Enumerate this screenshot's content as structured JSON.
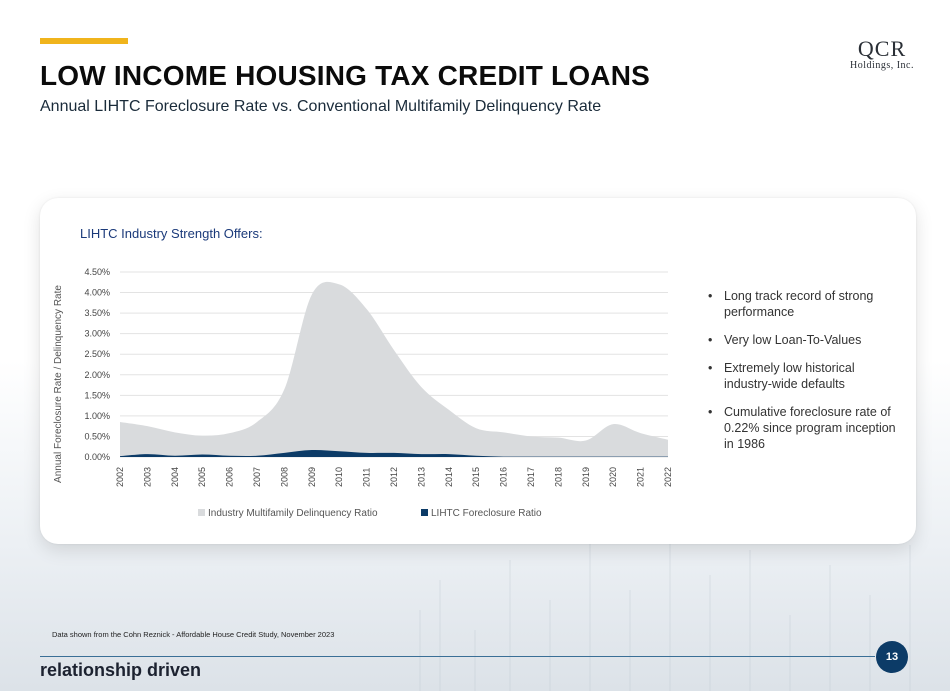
{
  "header": {
    "title": "LOW INCOME HOUSING TAX CREDIT LOANS",
    "subtitle": "Annual LIHTC Foreclosure Rate vs. Conventional Multifamily Delinquency Rate",
    "logo_main": "QCR",
    "logo_sub": "Holdings, Inc."
  },
  "card": {
    "heading": "LIHTC Industry Strength Offers:",
    "bullets": [
      "Long track record of strong performance",
      "Very low Loan-To-Values",
      "Extremely low historical industry-wide defaults",
      "Cumulative foreclosure rate of 0.22% since program inception in 1986"
    ]
  },
  "footer": {
    "source": "Data shown from the Cohn Reznick - Affordable House Credit Study, November 2023",
    "brand": "relationship driven",
    "page_number": "13"
  },
  "colors": {
    "accent": "#f0b41c",
    "industry_area": "#d9dbdd",
    "lihtc_area": "#0c3b67",
    "page_badge": "#0c3b67"
  },
  "chart_data": {
    "type": "area",
    "ylabel": "Annual Foreclosure Rate / Delinquency Rate",
    "xlabel": "",
    "ylim": [
      0,
      4.5
    ],
    "y_ticks": [
      "0.00%",
      "0.50%",
      "1.00%",
      "1.50%",
      "2.00%",
      "2.50%",
      "3.00%",
      "3.50%",
      "4.00%",
      "4.50%"
    ],
    "y_tick_values": [
      0,
      0.5,
      1,
      1.5,
      2,
      2.5,
      3,
      3.5,
      4,
      4.5
    ],
    "grid": true,
    "legend_position": "bottom",
    "categories": [
      "2002",
      "2003",
      "2004",
      "2005",
      "2006",
      "2007",
      "2008",
      "2009",
      "2010",
      "2011",
      "2012",
      "2013",
      "2014",
      "2015",
      "2016",
      "2017",
      "2018",
      "2019",
      "2020",
      "2021",
      "2022"
    ],
    "series": [
      {
        "name": "Industry Multifamily Delinquency Ratio",
        "values": [
          0.85,
          0.75,
          0.6,
          0.52,
          0.58,
          0.85,
          1.65,
          3.95,
          4.2,
          3.6,
          2.6,
          1.7,
          1.15,
          0.7,
          0.6,
          0.5,
          0.47,
          0.4,
          0.8,
          0.58,
          0.42
        ]
      },
      {
        "name": "LIHTC Foreclosure Ratio",
        "values": [
          0.02,
          0.07,
          0.03,
          0.06,
          0.03,
          0.03,
          0.1,
          0.17,
          0.14,
          0.1,
          0.1,
          0.07,
          0.07,
          0.03,
          0.01,
          0.01,
          0.01,
          0.01,
          0.01,
          0.01,
          0.01
        ]
      }
    ]
  }
}
